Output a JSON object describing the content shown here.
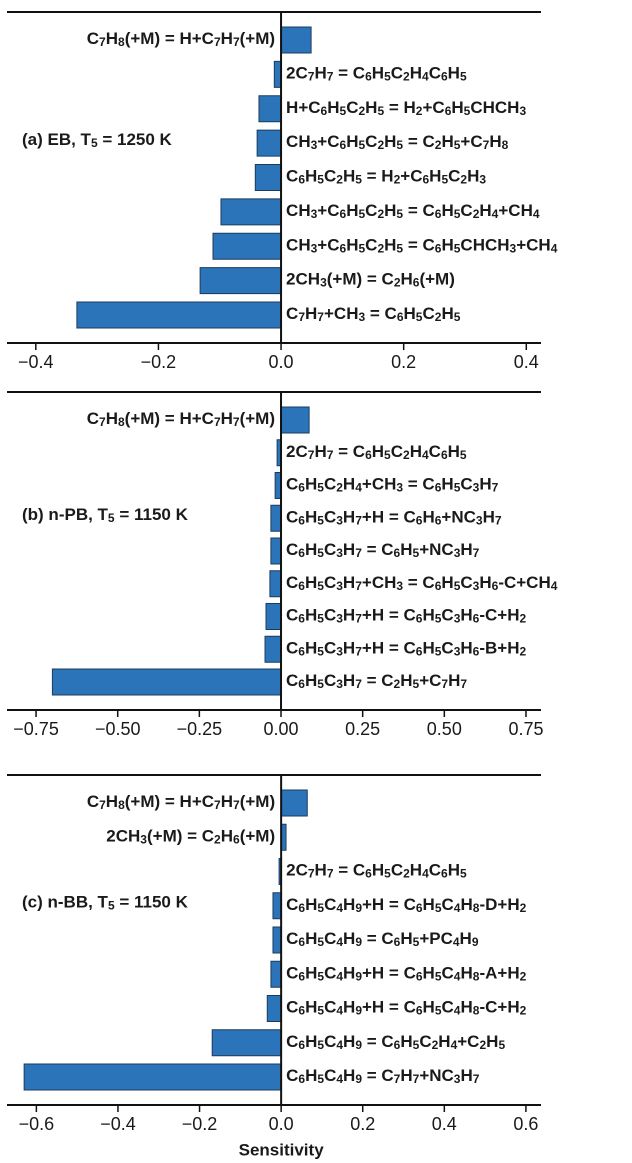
{
  "chart_data": [
    {
      "type": "bar",
      "orientation": "horizontal",
      "annotation": "(a) EB, T5 = 1250 K",
      "color": "#2b74ba",
      "categories": [
        "C7H8(+M) = H+C7H7(+M)",
        "2C7H7 = C6H5C2H4C6H5",
        "H+C6H5C2H5 = H2+C6H5CHCH3",
        "CH3+C6H5C2H5 = C2H5+C7H8",
        "C6H5C2H5 = H2+C6H5C2H3",
        "CH3+C6H5C2H5 = C6H5C2H4+CH4",
        "CH3+C6H5C2H5 = C6H5CHCH3+CH4",
        "2CH3(+M) = C2H6(+M)",
        "C7H7+CH3 = C6H5C2H5"
      ],
      "values": [
        0.049,
        -0.011,
        -0.036,
        -0.039,
        -0.042,
        -0.098,
        -0.111,
        -0.132,
        -0.333
      ],
      "xlim": [
        -0.447,
        0.424
      ],
      "xticks": [
        {
          "value": -0.4,
          "label": "−0.4"
        },
        {
          "value": -0.2,
          "label": "−0.2"
        },
        {
          "value": 0,
          "label": "0.0"
        },
        0.2,
        0.4
      ]
    },
    {
      "type": "bar",
      "orientation": "horizontal",
      "annotation": "(b) n-PB, T5 = 1150 K",
      "color": "#2b74ba",
      "categories": [
        "C7H8(+M) = H+C7H7(+M)",
        "2C7H7 = C6H5C2H4C6H5",
        "C6H5C2H4+CH3 = C6H5C3H7",
        "C6H5C3H7+H = C6H6+NC3H7",
        "C6H5C3H7 = C6H5+NC3H7",
        "C6H5C3H7+CH3 = C6H5C3H6-C+CH4",
        "C6H5C3H7+H = C6H5C3H6-C+H2",
        "C6H5C3H7+H = C6H5C3H6-B+H2",
        "C6H5C3H7 = C2H5+C7H7"
      ],
      "values": [
        0.086,
        -0.012,
        -0.018,
        -0.031,
        -0.031,
        -0.034,
        -0.046,
        -0.049,
        -0.7
      ],
      "xlim": [
        -0.839,
        0.796
      ],
      "xticks": [
        {
          "value": -0.75,
          "label": "−0.75"
        },
        {
          "value": -0.5,
          "label": "−0.50"
        },
        {
          "value": -0.25,
          "label": "−0.25"
        },
        {
          "value": 0,
          "label": "0.00"
        },
        0.25,
        {
          "value": 0.5,
          "label": "0.50"
        },
        0.75
      ]
    },
    {
      "type": "bar",
      "orientation": "horizontal",
      "annotation": "(c) n-BB, T5 = 1150 K",
      "color": "#2b74ba",
      "xlabel": "Sensitivity",
      "categories": [
        "C7H8(+M) = H+C7H7(+M)",
        "2CH3(+M) = C2H6(+M)",
        "2C7H7 = C6H5C2H4C6H5",
        "C6H5C4H9+H = C6H5C4H8-D+H2",
        "C6H5C4H9 = C6H5+PC4H9",
        "C6H5C4H9+H = C6H5C4H8-A+H2",
        "C6H5C4H9+H = C6H5C4H8-C+H2",
        "C6H5C4H9 = C6H5C2H4+C2H5",
        "C6H5C4H9 = C7H7+NC3H7"
      ],
      "values": [
        0.064,
        0.012,
        -0.005,
        -0.02,
        -0.02,
        -0.025,
        -0.034,
        -0.169,
        -0.63
      ],
      "xlim": [
        -0.672,
        0.637
      ],
      "xticks": [
        {
          "value": -0.6,
          "label": "−0.6"
        },
        {
          "value": -0.4,
          "label": "−0.4"
        },
        {
          "value": -0.2,
          "label": "−0.2"
        },
        {
          "value": 0,
          "label": "0.0"
        },
        0.2,
        0.4,
        0.6
      ]
    }
  ]
}
